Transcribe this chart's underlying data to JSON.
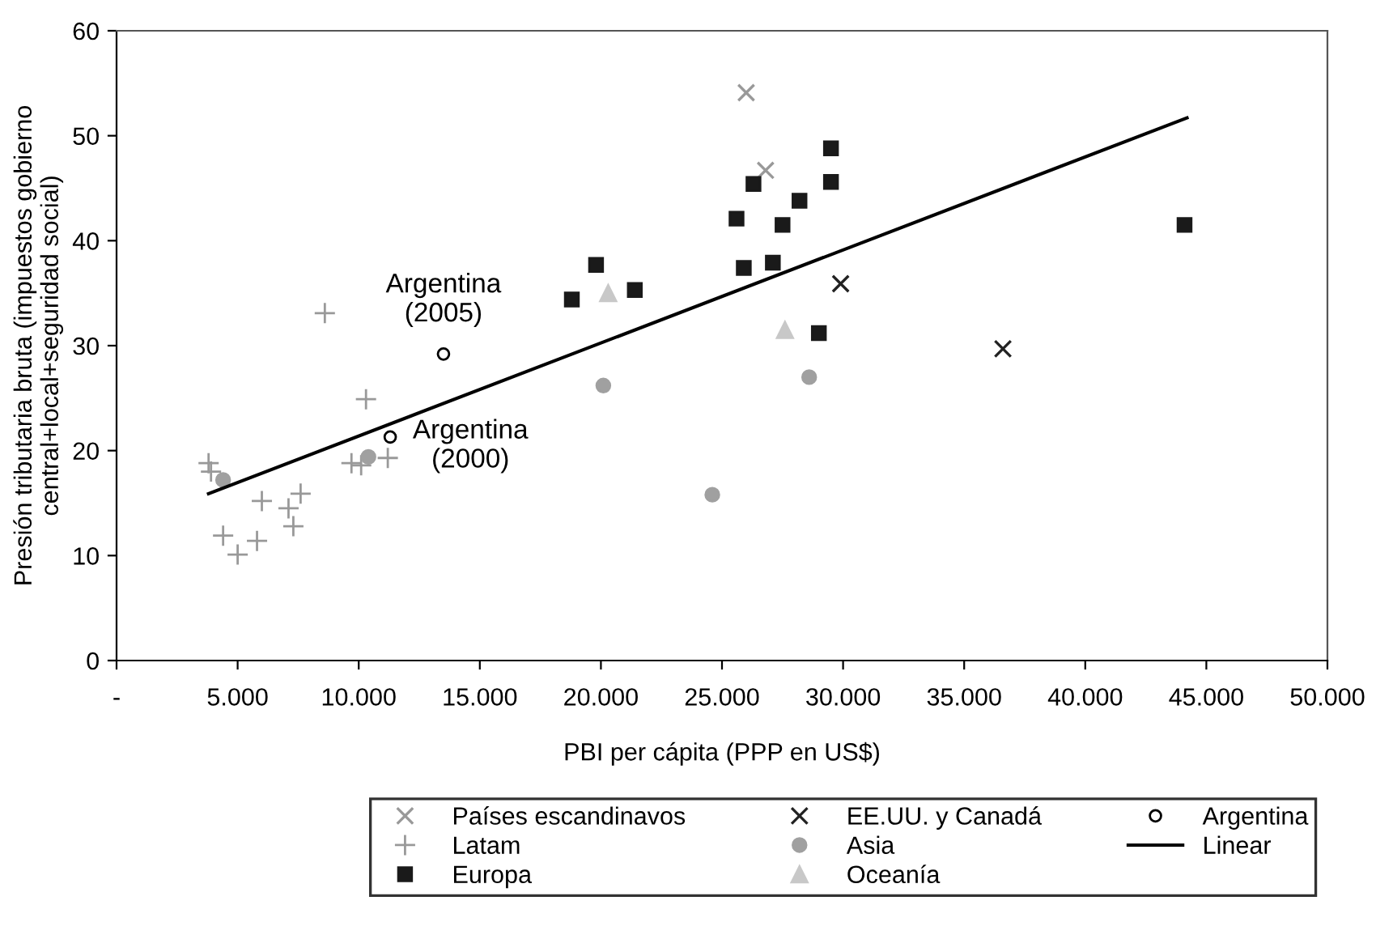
{
  "chart_data": {
    "type": "scatter",
    "xlabel": "PBI per cápita (PPP en US$)",
    "ylabel": "Presión tributaria bruta (impuestos gobierno\ncentral+local+seguridad social)",
    "xlim": [
      0,
      50000
    ],
    "ylim": [
      0,
      60
    ],
    "xticks": [
      {
        "value": 0,
        "label": "-"
      },
      {
        "value": 5000,
        "label": "5.000"
      },
      {
        "value": 10000,
        "label": "10.000"
      },
      {
        "value": 15000,
        "label": "15.000"
      },
      {
        "value": 20000,
        "label": "20.000"
      },
      {
        "value": 25000,
        "label": "25.000"
      },
      {
        "value": 30000,
        "label": "30.000"
      },
      {
        "value": 35000,
        "label": "35.000"
      },
      {
        "value": 40000,
        "label": "40.000"
      },
      {
        "value": 45000,
        "label": "45.000"
      },
      {
        "value": 50000,
        "label": "50.000"
      }
    ],
    "yticks": [
      0,
      10,
      20,
      30,
      40,
      50,
      60
    ],
    "grid": false,
    "legend": "bottom",
    "series": [
      {
        "name": "Países escandinavos",
        "color": "#999999",
        "marker": "cross",
        "x": [
          26000,
          26800
        ],
        "values": [
          54.1,
          46.7
        ]
      },
      {
        "name": "Latam",
        "color": "#999999",
        "marker": "plus",
        "x": [
          3800,
          3900,
          8600,
          10300,
          6000,
          7600,
          7100,
          7300,
          4400,
          5000,
          5800,
          9700,
          10100,
          11200
        ],
        "values": [
          18.8,
          18.0,
          33.1,
          24.9,
          15.2,
          15.9,
          14.5,
          12.8,
          11.9,
          10.1,
          11.4,
          18.8,
          18.6,
          19.3
        ]
      },
      {
        "name": "Europa",
        "color": "#1a1a1a",
        "marker": "square",
        "x": [
          19800,
          18800,
          21400,
          26300,
          25600,
          27500,
          28200,
          29500,
          29500,
          25900,
          27100,
          29000,
          44100
        ],
        "values": [
          37.7,
          34.4,
          35.3,
          45.4,
          42.1,
          41.5,
          43.8,
          48.8,
          45.6,
          37.4,
          37.9,
          31.2,
          41.5
        ]
      },
      {
        "name": "EE.UU. y Canadá",
        "color": "#222222",
        "marker": "cross",
        "x": [
          29900,
          36600
        ],
        "values": [
          35.9,
          29.7
        ]
      },
      {
        "name": "Asia",
        "color": "#a0a0a0",
        "marker": "circle",
        "x": [
          20100,
          24600,
          28600,
          4400,
          10400
        ],
        "values": [
          26.2,
          15.8,
          27.0,
          17.2,
          19.4
        ]
      },
      {
        "name": "Oceanía",
        "color": "#c8c8c8",
        "marker": "triangle",
        "x": [
          20300,
          27600
        ],
        "values": [
          35.0,
          31.5
        ]
      },
      {
        "name": "Argentina",
        "color": "#000000",
        "marker": "open_circle",
        "x": [
          13500,
          11300
        ],
        "values": [
          29.2,
          21.3
        ]
      },
      {
        "name": "Linear",
        "type": "line",
        "color": "#000000",
        "marker": "none",
        "x": [
          3800,
          44200
        ],
        "values": [
          15.9,
          51.7
        ]
      }
    ],
    "annotations": [
      {
        "text": "Argentina\n(2005)",
        "x": 13500,
        "y": 29.2
      },
      {
        "text": "Argentina\n(2000)",
        "x": 11300,
        "y": 21.3
      }
    ]
  }
}
